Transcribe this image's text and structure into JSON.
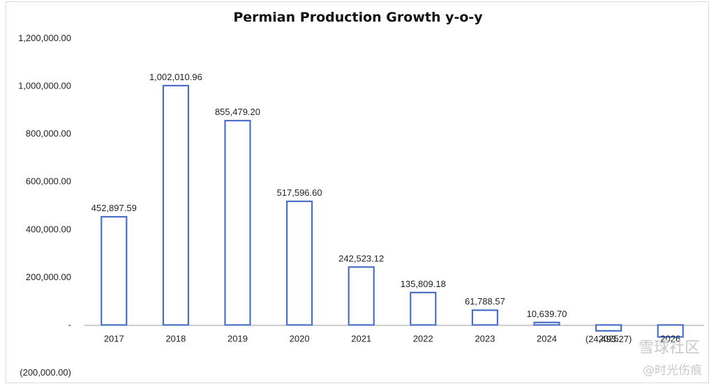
{
  "chart_data": {
    "type": "bar",
    "title": "Permian Production Growth y-o-y",
    "xlabel": "",
    "ylabel": "",
    "categories": [
      "2017",
      "2018",
      "2019",
      "2020",
      "2021",
      "2022",
      "2023",
      "2024",
      "2025",
      "2026"
    ],
    "values": [
      452897.59,
      1002010.96,
      855479.2,
      517596.6,
      242523.12,
      135809.18,
      61788.57,
      10639.7,
      -24493.27,
      -50000
    ],
    "data_labels": [
      "452,897.59",
      "1,002,010.96",
      "855,479.20",
      "517,596.60",
      "242,523.12",
      "135,809.18",
      "61,788.57",
      "10,639.70",
      "(24,493.27)",
      ""
    ],
    "ylim": [
      -200000,
      1200000
    ],
    "yticks": [
      1200000,
      1000000,
      800000,
      600000,
      400000,
      200000,
      0,
      -200000
    ],
    "ytick_labels": [
      "1,200,000.00",
      "1,000,000.00",
      "800,000.00",
      "600,000.00",
      "400,000.00",
      "200,000.00",
      "-",
      "(200,000.00)"
    ],
    "grid": false,
    "legend": "none",
    "bar_color": "#4a6fc8"
  },
  "watermark": {
    "brand": "雪球社区",
    "handle": "@时光伤痕"
  }
}
